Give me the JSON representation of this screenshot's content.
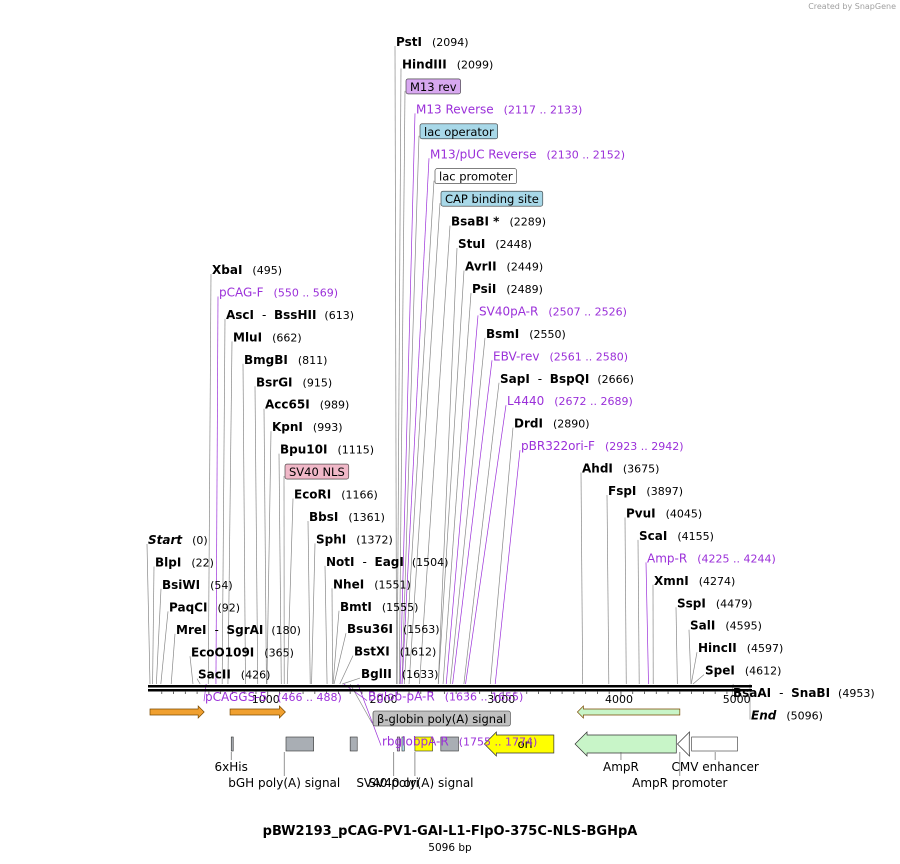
{
  "credit": "Created by SnapGene",
  "plasmid": {
    "name": "pBW2193_pCAG-PV1-GAI-L1-FlpO-375C-NLS-BGHpA",
    "size_label": "5096 bp",
    "length": 5096
  },
  "colors": {
    "enzyme": "#000000",
    "primer": "#9b30d9",
    "feature_orange": "#f0a030",
    "ori_yellow": "#ffff00",
    "ampr_green": "#c8f5c8",
    "misc_gray": "#a9aeb4",
    "m13_purple": "#d8a8f0",
    "operator_blue": "#a8d8e8",
    "nls_pink": "#f0b8c8",
    "globin_gray": "#c0c0c0"
  },
  "ruler_ticks": [
    {
      "pos": 1000,
      "label": "1000"
    },
    {
      "pos": 2000,
      "label": "2000"
    },
    {
      "pos": 3000,
      "label": "3000"
    },
    {
      "pos": 4000,
      "label": "4000"
    },
    {
      "pos": 5000,
      "label": "5000"
    }
  ],
  "top_labels": [
    {
      "type": "enzyme",
      "name": "PstI",
      "coord": "(2094)",
      "pos": 2094
    },
    {
      "type": "enzyme",
      "name": "HindIII",
      "coord": "(2099)",
      "pos": 2099
    },
    {
      "type": "box",
      "name": "M13 rev",
      "color": "m13_purple",
      "pos": 2117
    },
    {
      "type": "primer",
      "name": "M13 Reverse",
      "coord": "(2117 .. 2133)",
      "pos": 2125
    },
    {
      "type": "box",
      "name": "lac operator",
      "color": "operator_blue",
      "pos": 2140
    },
    {
      "type": "primer",
      "name": "M13/pUC Reverse",
      "coord": "(2130 .. 2152)",
      "pos": 2141
    },
    {
      "type": "box",
      "name": "lac promoter",
      "color": "white",
      "pos": 2160
    },
    {
      "type": "box",
      "name": "CAP binding site",
      "color": "operator_blue",
      "pos": 2200
    },
    {
      "type": "enzyme",
      "name": "BsaBI *",
      "coord": "(2289)",
      "pos": 2289
    },
    {
      "type": "enzyme",
      "name": "StuI",
      "coord": "(2448)",
      "pos": 2448
    },
    {
      "type": "enzyme",
      "name": "AvrII",
      "coord": "(2449)",
      "pos": 2449
    },
    {
      "type": "enzyme",
      "name": "PsiI",
      "coord": "(2489)",
      "pos": 2489
    },
    {
      "type": "primer",
      "name": "SV40pA-R",
      "coord": "(2507 .. 2526)",
      "pos": 2516
    },
    {
      "type": "enzyme",
      "name": "BsmI",
      "coord": "(2550)",
      "pos": 2550
    },
    {
      "type": "primer",
      "name": "EBV-rev",
      "coord": "(2561 .. 2580)",
      "pos": 2570
    },
    {
      "type": "enzyme",
      "name": "SapI",
      "name2": "BspQI",
      "coord": "(2666)",
      "pos": 2666
    },
    {
      "type": "primer",
      "name": "L4440",
      "coord": "(2672 .. 2689)",
      "pos": 2680
    },
    {
      "type": "enzyme",
      "name": "DrdI",
      "coord": "(2890)",
      "pos": 2890
    },
    {
      "type": "primer",
      "name": "pBR322ori-F",
      "coord": "(2923 .. 2942)",
      "pos": 2932
    },
    {
      "type": "enzyme",
      "name": "AhdI",
      "coord": "(3675)",
      "pos": 3675
    },
    {
      "type": "enzyme",
      "name": "FspI",
      "coord": "(3897)",
      "pos": 3897
    },
    {
      "type": "enzyme",
      "name": "PvuI",
      "coord": "(4045)",
      "pos": 4045
    },
    {
      "type": "enzyme",
      "name": "ScaI",
      "coord": "(4155)",
      "pos": 4155
    },
    {
      "type": "primer",
      "name": "Amp-R",
      "coord": "(4225 .. 4244)",
      "pos": 4234
    },
    {
      "type": "enzyme",
      "name": "XmnI",
      "coord": "(4274)",
      "pos": 4274
    },
    {
      "type": "enzyme",
      "name": "SspI",
      "coord": "(4479)",
      "pos": 4479
    },
    {
      "type": "enzyme",
      "name": "SalI",
      "coord": "(4595)",
      "pos": 4595
    },
    {
      "type": "enzyme",
      "name": "HincII",
      "coord": "(4597)",
      "pos": 4597
    },
    {
      "type": "enzyme",
      "name": "SpeI",
      "coord": "(4612)",
      "pos": 4612
    },
    {
      "type": "enzyme",
      "name": "BsaAI",
      "name2": "SnaBI",
      "coord": "(4953)",
      "pos": 4953
    },
    {
      "type": "end",
      "name": "End",
      "coord": "(5096)",
      "pos": 5096
    },
    {
      "type": "enzyme",
      "name": "XbaI",
      "coord": "(495)",
      "pos": 495
    },
    {
      "type": "primer",
      "name": "pCAG-F",
      "coord": "(550 .. 569)",
      "pos": 560
    },
    {
      "type": "enzyme",
      "name": "AscI",
      "name2": "BssHII",
      "coord": "(613)",
      "pos": 613
    },
    {
      "type": "enzyme",
      "name": "MluI",
      "coord": "(662)",
      "pos": 662
    },
    {
      "type": "enzyme",
      "name": "BmgBI",
      "coord": "(811)",
      "pos": 811
    },
    {
      "type": "enzyme",
      "name": "BsrGI",
      "coord": "(915)",
      "pos": 915
    },
    {
      "type": "enzyme",
      "name": "Acc65I",
      "coord": "(989)",
      "pos": 989
    },
    {
      "type": "enzyme",
      "name": "KpnI",
      "coord": "(993)",
      "pos": 993
    },
    {
      "type": "enzyme",
      "name": "Bpu10I",
      "coord": "(1115)",
      "pos": 1115
    },
    {
      "type": "box",
      "name": "SV40 NLS",
      "color": "nls_pink",
      "pos": 1140
    },
    {
      "type": "enzyme",
      "name": "EcoRI",
      "coord": "(1166)",
      "pos": 1166
    },
    {
      "type": "enzyme",
      "name": "BbsI",
      "coord": "(1361)",
      "pos": 1361
    },
    {
      "type": "enzyme",
      "name": "SphI",
      "coord": "(1372)",
      "pos": 1372
    },
    {
      "type": "enzyme",
      "name": "NotI",
      "name2": "EagI",
      "coord": "(1504)",
      "pos": 1504
    },
    {
      "type": "enzyme",
      "name": "NheI",
      "coord": "(1551)",
      "pos": 1551
    },
    {
      "type": "enzyme",
      "name": "BmtI",
      "coord": "(1555)",
      "pos": 1555
    },
    {
      "type": "enzyme",
      "name": "Bsu36I",
      "coord": "(1563)",
      "pos": 1563
    },
    {
      "type": "enzyme",
      "name": "BstXI",
      "coord": "(1612)",
      "pos": 1612
    },
    {
      "type": "enzyme",
      "name": "BglII",
      "coord": "(1633)",
      "pos": 1633
    },
    {
      "type": "primer",
      "name": "Bglob-pA-R",
      "coord": "(1636 .. 1655)",
      "pos": 1646
    },
    {
      "type": "box",
      "name": "β-globin poly(A) signal",
      "color": "globin_gray",
      "pos": 1700
    },
    {
      "type": "primer",
      "name": "rbglobpA-R",
      "coord": "(1755 .. 1774)",
      "pos": 1765
    },
    {
      "type": "start",
      "name": "Start",
      "coord": "(0)",
      "pos": 0
    },
    {
      "type": "enzyme",
      "name": "BlpI",
      "coord": "(22)",
      "pos": 22
    },
    {
      "type": "enzyme",
      "name": "BsiWI",
      "coord": "(54)",
      "pos": 54
    },
    {
      "type": "enzyme",
      "name": "PaqCI",
      "coord": "(92)",
      "pos": 92
    },
    {
      "type": "enzyme",
      "name": "MreI",
      "name2": "SgrAI",
      "coord": "(180)",
      "pos": 180
    },
    {
      "type": "enzyme",
      "name": "EcoO109I",
      "coord": "(365)",
      "pos": 365
    },
    {
      "type": "enzyme",
      "name": "SacII",
      "coord": "(426)",
      "pos": 426
    },
    {
      "type": "primer",
      "name": "pCAGGS-5",
      "coord": "(466 .. 488)",
      "pos": 477
    }
  ],
  "bottom_labels": [
    {
      "name": "6xHis",
      "pos": 690
    },
    {
      "name": "bGH poly(A) signal",
      "pos": 1140
    },
    {
      "name": "SV40 ori",
      "pos": 2070
    },
    {
      "name": "SV40 poly(A) signal",
      "pos": 2250
    },
    {
      "name": "AmpR",
      "pos": 4000
    },
    {
      "name": "AmpR promoter",
      "pos": 4500
    },
    {
      "name": "CMV enhancer",
      "pos": 4800
    }
  ],
  "features": [
    {
      "name": "",
      "kind": "arrow",
      "track": 1,
      "start": 0,
      "end": 460,
      "dir": 1,
      "color": "feature_orange"
    },
    {
      "name": "",
      "kind": "arrow",
      "track": 1,
      "start": 680,
      "end": 1150,
      "dir": 1,
      "color": "feature_orange"
    },
    {
      "name": "",
      "kind": "arrow",
      "track": 1,
      "start": 3630,
      "end": 4500,
      "dir": -1,
      "color": "ampr_green"
    },
    {
      "name": "",
      "kind": "box",
      "track": 2,
      "start": 690,
      "end": 705,
      "color": "misc_gray"
    },
    {
      "name": "",
      "kind": "box",
      "track": 2,
      "start": 1155,
      "end": 1390,
      "color": "misc_gray"
    },
    {
      "name": "",
      "kind": "box",
      "track": 2,
      "start": 1700,
      "end": 1760,
      "color": "misc_gray"
    },
    {
      "name": "",
      "kind": "box",
      "track": 2,
      "start": 2100,
      "end": 2120,
      "color": "m13_purple"
    },
    {
      "name": "",
      "kind": "box",
      "track": 2,
      "start": 2140,
      "end": 2160,
      "color": "operator_blue"
    },
    {
      "name": "",
      "kind": "box",
      "track": 2,
      "start": 2250,
      "end": 2400,
      "color": "ori_yellow"
    },
    {
      "name": "",
      "kind": "box",
      "track": 2,
      "start": 2470,
      "end": 2620,
      "color": "misc_gray"
    },
    {
      "name": "ori",
      "kind": "arrow",
      "track": 2,
      "start": 2840,
      "end": 3430,
      "dir": -1,
      "color": "ori_yellow"
    },
    {
      "name": "",
      "kind": "arrow",
      "track": 2,
      "start": 3610,
      "end": 4470,
      "dir": -1,
      "color": "ampr_green"
    },
    {
      "name": "",
      "kind": "arrow",
      "track": 2,
      "start": 4480,
      "end": 4580,
      "dir": -1,
      "color": "white"
    },
    {
      "name": "",
      "kind": "box",
      "track": 2,
      "start": 4600,
      "end": 4990,
      "color": "white"
    }
  ]
}
